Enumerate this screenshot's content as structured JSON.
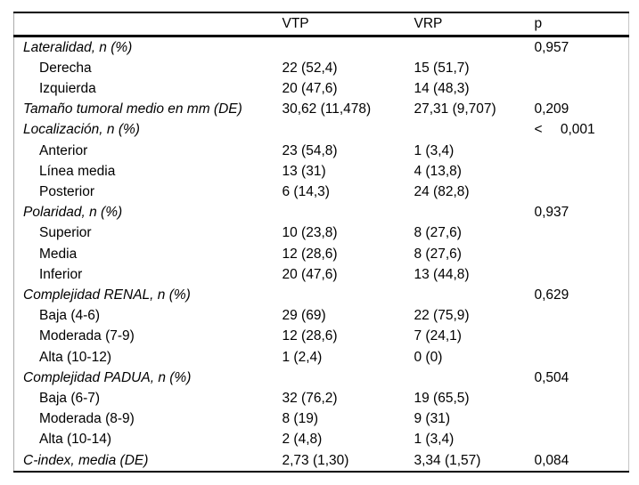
{
  "table": {
    "header": {
      "label": "",
      "vtp": "VTP",
      "vrp": "VRP",
      "p": "p"
    },
    "rows": [
      {
        "label": "Lateralidad, n (%)",
        "kind": "section",
        "vtp": "",
        "vrp": "",
        "p": "0,957"
      },
      {
        "label": "Derecha",
        "kind": "item",
        "vtp": "22 (52,4)",
        "vrp": "15 (51,7)",
        "p": ""
      },
      {
        "label": "Izquierda",
        "kind": "item",
        "vtp": "20 (47,6)",
        "vrp": "14 (48,3)",
        "p": ""
      },
      {
        "label": "Tamaño tumoral medio en mm (DE)",
        "kind": "section",
        "vtp": "30,62 (11,478)",
        "vrp": "27,31 (9,707)",
        "p": "0,209"
      },
      {
        "label": "Localización, n (%)",
        "kind": "section",
        "vtp": "",
        "vrp": "",
        "p": "< 0,001"
      },
      {
        "label": "Anterior",
        "kind": "item",
        "vtp": "23 (54,8)",
        "vrp": "1 (3,4)",
        "p": ""
      },
      {
        "label": "Línea media",
        "kind": "item",
        "vtp": "13 (31)",
        "vrp": "4 (13,8)",
        "p": ""
      },
      {
        "label": "Posterior",
        "kind": "item",
        "vtp": "6 (14,3)",
        "vrp": "24 (82,8)",
        "p": ""
      },
      {
        "label": "Polaridad, n (%)",
        "kind": "section",
        "vtp": "",
        "vrp": "",
        "p": "0,937"
      },
      {
        "label": "Superior",
        "kind": "item",
        "vtp": "10 (23,8)",
        "vrp": "8 (27,6)",
        "p": ""
      },
      {
        "label": "Media",
        "kind": "item",
        "vtp": "12 (28,6)",
        "vrp": "8 (27,6)",
        "p": ""
      },
      {
        "label": "Inferior",
        "kind": "item",
        "vtp": "20 (47,6)",
        "vrp": "13 (44,8)",
        "p": ""
      },
      {
        "label": "Complejidad RENAL, n (%)",
        "kind": "section",
        "vtp": "",
        "vrp": "",
        "p": "0,629"
      },
      {
        "label": "Baja (4-6)",
        "kind": "item",
        "vtp": "29 (69)",
        "vrp": "22 (75,9)",
        "p": ""
      },
      {
        "label": "Moderada (7-9)",
        "kind": "item",
        "vtp": "12 (28,6)",
        "vrp": "7 (24,1)",
        "p": ""
      },
      {
        "label": "Alta (10-12)",
        "kind": "item",
        "vtp": "1 (2,4)",
        "vrp": "0 (0)",
        "p": ""
      },
      {
        "label": "Complejidad PADUA, n (%)",
        "kind": "section",
        "vtp": "",
        "vrp": "",
        "p": "0,504"
      },
      {
        "label": "Baja (6-7)",
        "kind": "item",
        "vtp": "32 (76,2)",
        "vrp": "19 (65,5)",
        "p": ""
      },
      {
        "label": "Moderada (8-9)",
        "kind": "item",
        "vtp": "8 (19)",
        "vrp": "9 (31)",
        "p": ""
      },
      {
        "label": "Alta (10-14)",
        "kind": "item",
        "vtp": "2 (4,8)",
        "vrp": "1 (3,4)",
        "p": ""
      },
      {
        "label": "C-index, media (DE)",
        "kind": "section",
        "vtp": "2,73 (1,30)",
        "vrp": "3,34 (1,57)",
        "p": "0,084"
      }
    ]
  },
  "colors": {
    "text": "#000000",
    "background": "#ffffff",
    "rule_heavy": "#000000",
    "rule_side": "#ababab"
  }
}
